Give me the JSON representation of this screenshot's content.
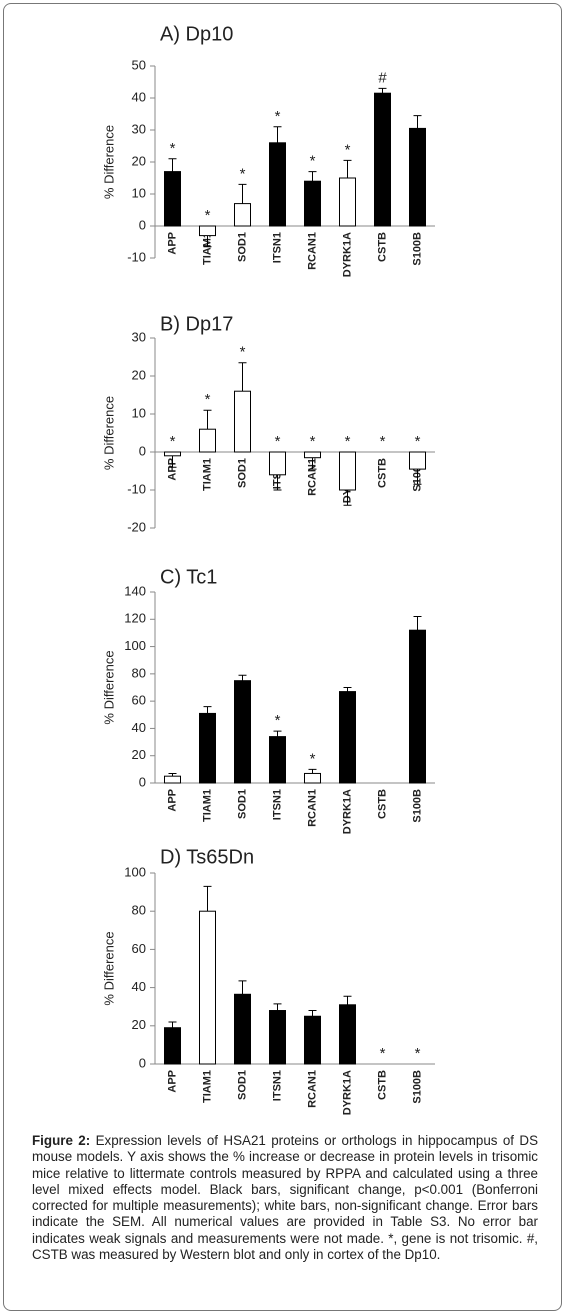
{
  "chart_data": [
    {
      "type": "bar",
      "title": "A) Dp10",
      "y_label": "% Difference",
      "categories": [
        "APP",
        "TIAM1",
        "SOD1",
        "ITSN1",
        "RCAN1",
        "DYRK1A",
        "CSTB",
        "S100B"
      ],
      "values": [
        17,
        -3,
        7,
        26,
        14,
        15,
        41.5,
        30.5
      ],
      "errors": [
        4,
        3.5,
        6,
        5,
        3,
        5.5,
        1.5,
        4
      ],
      "colors": [
        "#000000",
        "#ffffff",
        "#ffffff",
        "#000000",
        "#000000",
        "#ffffff",
        "#000000",
        "#000000"
      ],
      "annotations": [
        "*",
        "*",
        "*",
        "*",
        "*",
        "*",
        "#",
        null
      ],
      "ylim": [
        -10,
        50
      ],
      "yticks": [
        -10,
        0,
        10,
        20,
        30,
        40,
        50
      ]
    },
    {
      "type": "bar",
      "title": "B) Dp17",
      "y_label": "% Difference",
      "categories": [
        "APP",
        "TIAM1",
        "SOD1",
        "ITSN1",
        "RCAN1",
        "DYRK1A",
        "CSTB",
        "S100B"
      ],
      "values": [
        -1,
        6,
        16,
        -6,
        -1.5,
        -10,
        null,
        -4.5
      ],
      "errors": [
        3,
        5,
        7.5,
        4,
        3,
        4,
        null,
        4
      ],
      "colors": [
        "#ffffff",
        "#ffffff",
        "#ffffff",
        "#ffffff",
        "#ffffff",
        "#ffffff",
        "#ffffff",
        "#ffffff"
      ],
      "annotations": [
        "*",
        "*",
        "*",
        "*",
        "*",
        "*",
        "*",
        "*"
      ],
      "ylim": [
        -20,
        30
      ],
      "yticks": [
        -20,
        -10,
        0,
        10,
        20,
        30
      ]
    },
    {
      "type": "bar",
      "title": "C) Tc1",
      "y_label": "% Difference",
      "categories": [
        "APP",
        "TIAM1",
        "SOD1",
        "ITSN1",
        "RCAN1",
        "DYRK1A",
        "CSTB",
        "S100B"
      ],
      "values": [
        5,
        51,
        75,
        34,
        7,
        67,
        null,
        112
      ],
      "errors": [
        2,
        5,
        4,
        4,
        3,
        3,
        null,
        10
      ],
      "colors": [
        "#ffffff",
        "#000000",
        "#000000",
        "#000000",
        "#ffffff",
        "#000000",
        "#000000",
        "#000000"
      ],
      "annotations": [
        null,
        null,
        null,
        "*",
        "*",
        null,
        null,
        null
      ],
      "ylim": [
        0,
        140
      ],
      "yticks": [
        0,
        20,
        40,
        60,
        80,
        100,
        120,
        140
      ]
    },
    {
      "type": "bar",
      "title": "D) Ts65Dn",
      "y_label": "% Difference",
      "categories": [
        "APP",
        "TIAM1",
        "SOD1",
        "ITSN1",
        "RCAN1",
        "DYRK1A",
        "CSTB",
        "S100B"
      ],
      "values": [
        19,
        80,
        36.5,
        28,
        25,
        31,
        null,
        null
      ],
      "errors": [
        3,
        13,
        7,
        3.5,
        3,
        4.5,
        null,
        null
      ],
      "colors": [
        "#000000",
        "#ffffff",
        "#000000",
        "#000000",
        "#000000",
        "#000000",
        "#000000",
        "#000000"
      ],
      "annotations": [
        null,
        null,
        null,
        null,
        null,
        null,
        "*",
        "*"
      ],
      "ylim": [
        0,
        100
      ],
      "yticks": [
        0,
        20,
        40,
        60,
        80,
        100
      ]
    }
  ],
  "caption": {
    "label": "Figure 2:",
    "text": "Expression levels of HSA21 proteins or orthologs in hippocampus of DS mouse models. Y axis shows the % increase or decrease in protein levels in trisomic mice relative to littermate controls measured by RPPA and calculated using a three level mixed effects model. Black bars, significant change, p<0.001 (Bonferroni corrected for multiple measurements); white bars, non-significant change. Error bars indicate the SEM. All numerical values are provided in Table S3. No error bar indicates weak signals and measurements were not made. *, gene is not trisomic. #, CSTB was measured by Western blot and only in cortex of the Dp10."
  }
}
